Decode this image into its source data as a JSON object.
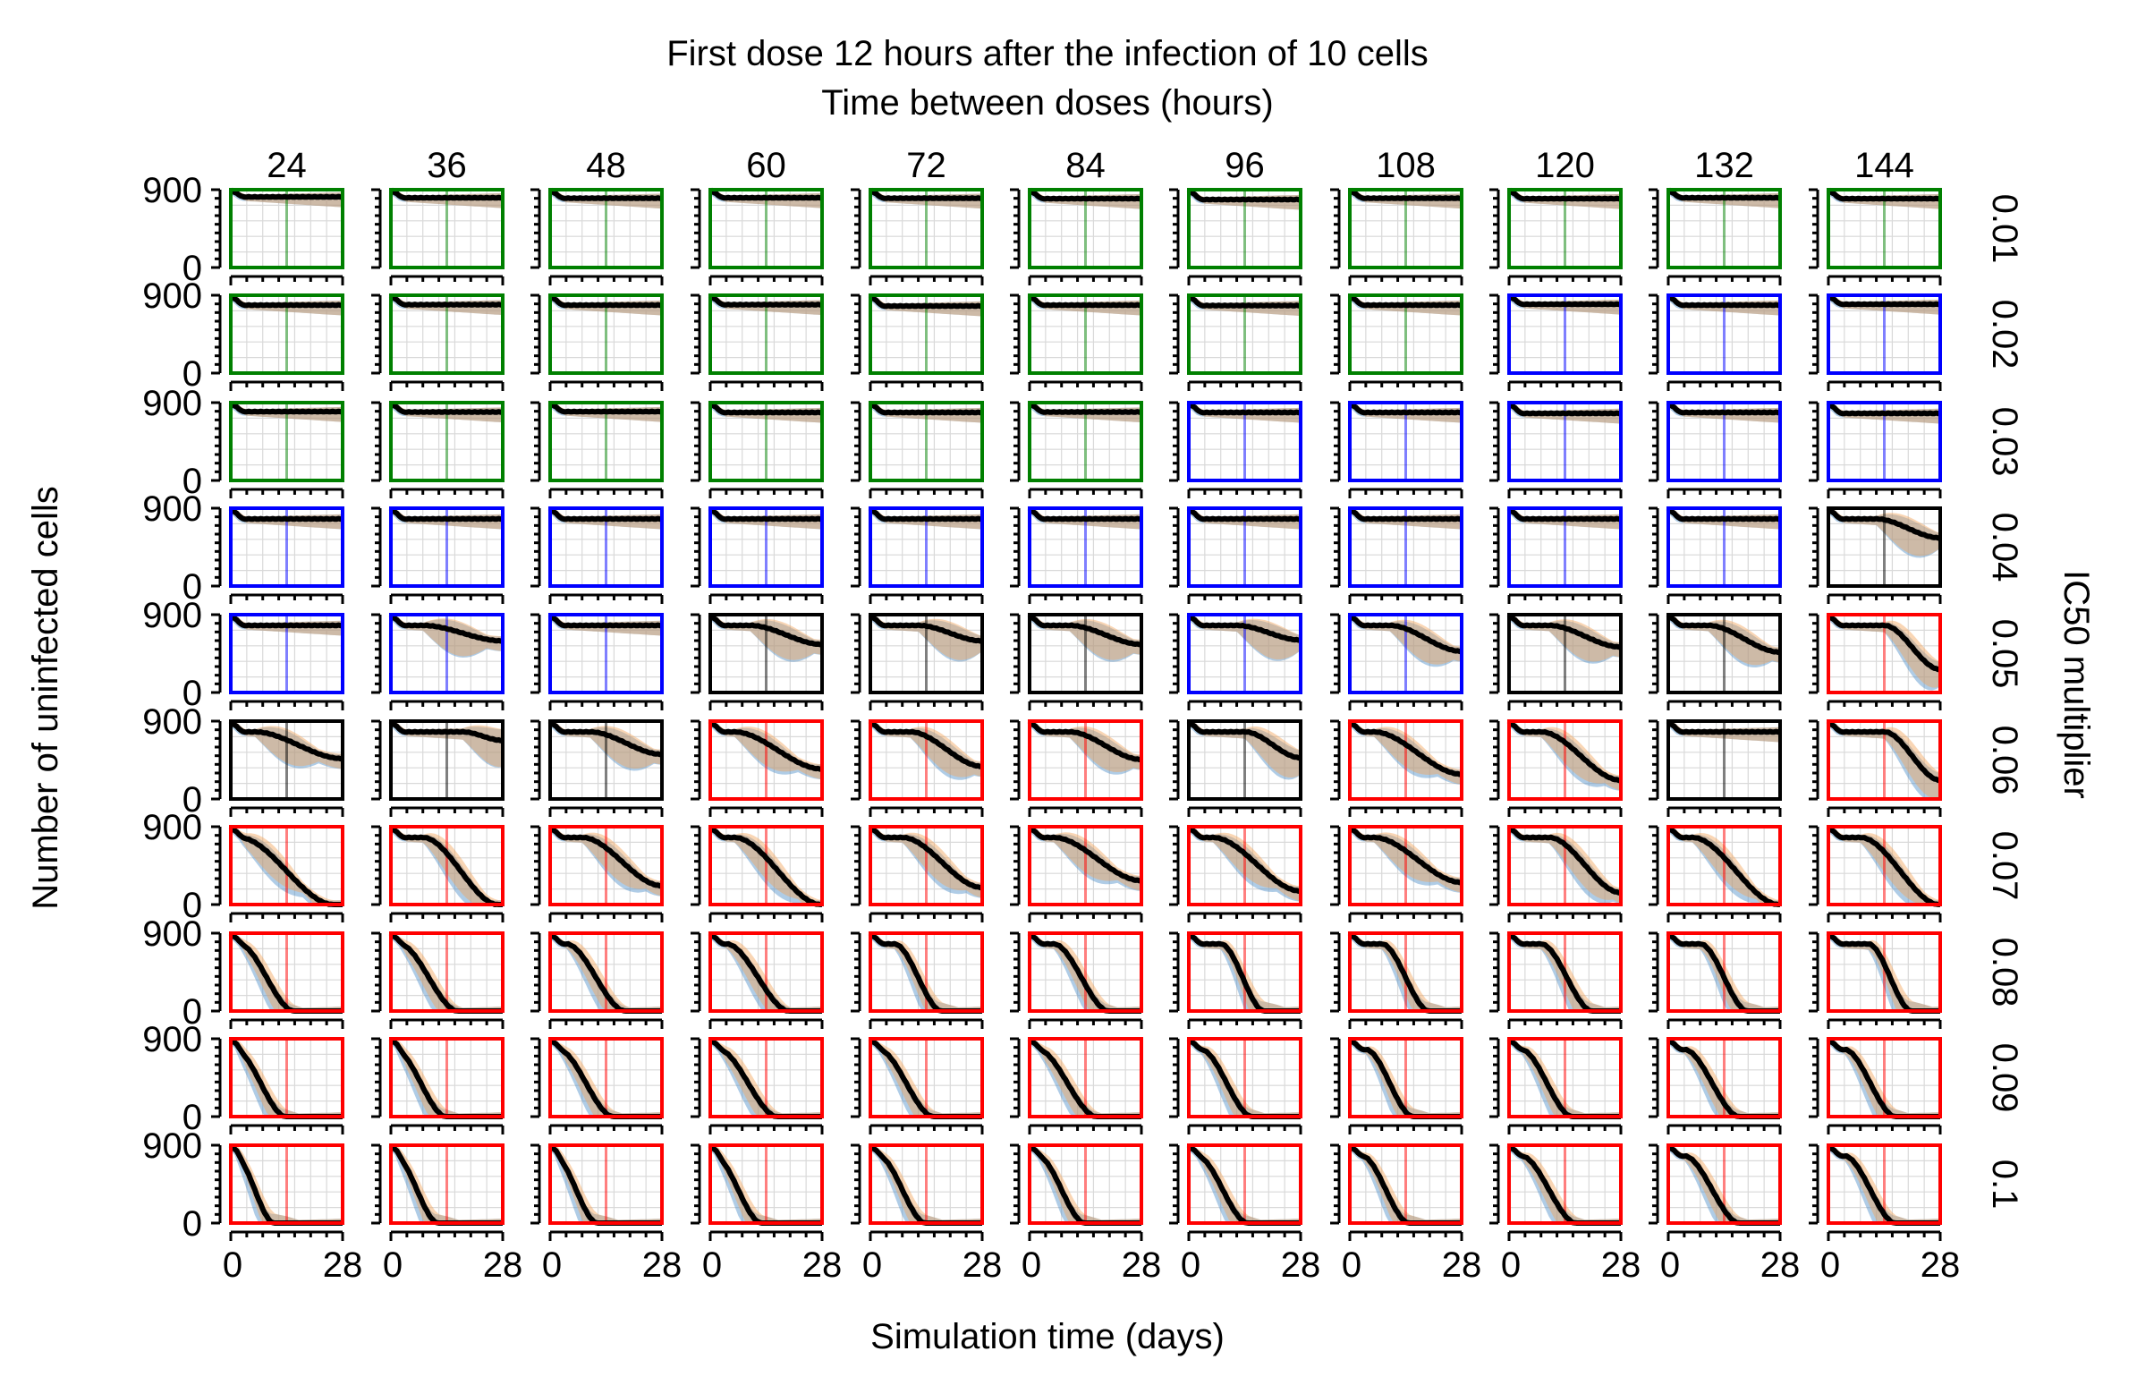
{
  "figure": {
    "title": "First dose 12 hours after the infection of 10 cells",
    "subtitle": "Time between doses (hours)",
    "xlabel": "Simulation time (days)",
    "ylabel": "Number of uninfected cells",
    "row_axis_label": "IC50 multiplier"
  },
  "chart_data": {
    "type": "line",
    "description_grid": "small multiples: rows = IC50 multiplier, columns = time between doses",
    "column_values": [
      "24",
      "36",
      "48",
      "60",
      "72",
      "84",
      "96",
      "108",
      "120",
      "132",
      "144"
    ],
    "row_values": [
      "0.01",
      "0.02",
      "0.03",
      "0.04",
      "0.05",
      "0.06",
      "0.07",
      "0.08",
      "0.09",
      "0.1"
    ],
    "x_tick_labels": [
      "0",
      "28"
    ],
    "y_tick_labels": [
      "900",
      "0"
    ],
    "xlim": [
      0,
      28
    ],
    "ylim": [
      0,
      900
    ],
    "grid": true,
    "frame_colors": {
      "green": "#008000",
      "blue": "#0000ff",
      "black": "#000000",
      "red": "#ff0000"
    },
    "band_colors": {
      "blue_band": "#4d8fc7",
      "orange_band": "#f2a35b",
      "mean_line": "#000000"
    },
    "frame_status": [
      [
        "green",
        "green",
        "green",
        "green",
        "green",
        "green",
        "green",
        "green",
        "green",
        "green",
        "green"
      ],
      [
        "green",
        "green",
        "green",
        "green",
        "green",
        "green",
        "green",
        "green",
        "blue",
        "blue",
        "blue"
      ],
      [
        "green",
        "green",
        "green",
        "green",
        "green",
        "green",
        "blue",
        "blue",
        "blue",
        "blue",
        "blue"
      ],
      [
        "blue",
        "blue",
        "blue",
        "blue",
        "blue",
        "blue",
        "blue",
        "blue",
        "blue",
        "blue",
        "black"
      ],
      [
        "blue",
        "blue",
        "blue",
        "black",
        "black",
        "black",
        "blue",
        "blue",
        "black",
        "black",
        "red"
      ],
      [
        "black",
        "black",
        "black",
        "red",
        "red",
        "red",
        "black",
        "red",
        "red",
        "black",
        "red"
      ],
      [
        "red",
        "red",
        "red",
        "red",
        "red",
        "red",
        "red",
        "red",
        "red",
        "red",
        "red"
      ],
      [
        "red",
        "red",
        "red",
        "red",
        "red",
        "red",
        "red",
        "red",
        "red",
        "red",
        "red"
      ],
      [
        "red",
        "red",
        "red",
        "red",
        "red",
        "red",
        "red",
        "red",
        "red",
        "red",
        "red"
      ],
      [
        "red",
        "red",
        "red",
        "red",
        "red",
        "red",
        "red",
        "red",
        "red",
        "red",
        "red"
      ]
    ],
    "final_mean_values": [
      [
        820,
        810,
        805,
        810,
        805,
        800,
        790,
        805,
        800,
        810,
        800
      ],
      [
        790,
        795,
        790,
        795,
        780,
        790,
        785,
        790,
        800,
        790,
        800
      ],
      [
        800,
        795,
        800,
        790,
        790,
        795,
        790,
        790,
        770,
        790,
        780
      ],
      [
        730,
        690,
        740,
        730,
        740,
        750,
        760,
        740,
        710,
        650,
        560
      ],
      [
        690,
        600,
        700,
        560,
        600,
        560,
        610,
        480,
        530,
        470,
        270
      ],
      [
        470,
        680,
        520,
        350,
        380,
        460,
        480,
        290,
        220,
        760,
        220
      ],
      [
        0,
        0,
        220,
        0,
        200,
        280,
        160,
        260,
        140,
        20,
        20
      ],
      [
        0,
        0,
        0,
        0,
        0,
        0,
        0,
        0,
        0,
        0,
        0
      ],
      [
        0,
        0,
        0,
        0,
        0,
        0,
        0,
        0,
        0,
        0,
        0
      ],
      [
        0,
        0,
        0,
        0,
        0,
        0,
        0,
        0,
        0,
        0,
        0
      ]
    ],
    "decline_onset_days": [
      [
        null,
        null,
        null,
        null,
        null,
        null,
        null,
        null,
        null,
        null,
        null
      ],
      [
        null,
        null,
        null,
        null,
        null,
        null,
        null,
        null,
        null,
        null,
        null
      ],
      [
        null,
        null,
        null,
        null,
        null,
        null,
        null,
        null,
        null,
        null,
        null
      ],
      [
        null,
        null,
        null,
        null,
        null,
        null,
        null,
        null,
        null,
        null,
        12
      ],
      [
        null,
        8,
        null,
        10,
        12,
        10,
        12,
        10,
        10,
        10,
        14
      ],
      [
        6,
        18,
        10,
        6,
        10,
        10,
        14,
        6,
        8,
        null,
        14
      ],
      [
        2,
        8,
        8,
        6,
        8,
        6,
        6,
        6,
        10,
        6,
        8
      ],
      [
        2,
        2,
        4,
        4,
        6,
        6,
        8,
        8,
        8,
        8,
        10
      ],
      [
        1,
        1,
        2,
        2,
        2,
        2,
        3,
        4,
        3,
        4,
        4
      ],
      [
        1,
        1,
        1,
        1,
        2,
        2,
        2,
        3,
        3,
        4,
        4
      ]
    ],
    "extinction_day": [
      [
        null,
        null,
        null,
        null,
        null,
        null,
        null,
        null,
        null,
        null,
        null
      ],
      [
        null,
        null,
        null,
        null,
        null,
        null,
        null,
        null,
        null,
        null,
        null
      ],
      [
        null,
        null,
        null,
        null,
        null,
        null,
        null,
        null,
        null,
        null,
        null
      ],
      [
        null,
        null,
        null,
        null,
        null,
        null,
        null,
        null,
        null,
        null,
        null
      ],
      [
        null,
        null,
        null,
        null,
        null,
        null,
        null,
        null,
        null,
        null,
        null
      ],
      [
        null,
        null,
        null,
        null,
        null,
        null,
        null,
        null,
        null,
        null,
        null
      ],
      [
        26,
        27,
        null,
        28,
        null,
        null,
        null,
        null,
        null,
        28,
        28
      ],
      [
        16,
        17,
        19,
        20,
        18,
        20,
        19,
        20,
        21,
        20,
        21
      ],
      [
        14,
        14,
        16,
        17,
        16,
        17,
        16,
        16,
        16,
        18,
        17
      ],
      [
        11,
        12,
        12,
        13,
        14,
        14,
        15,
        15,
        17,
        18,
        17
      ]
    ]
  }
}
